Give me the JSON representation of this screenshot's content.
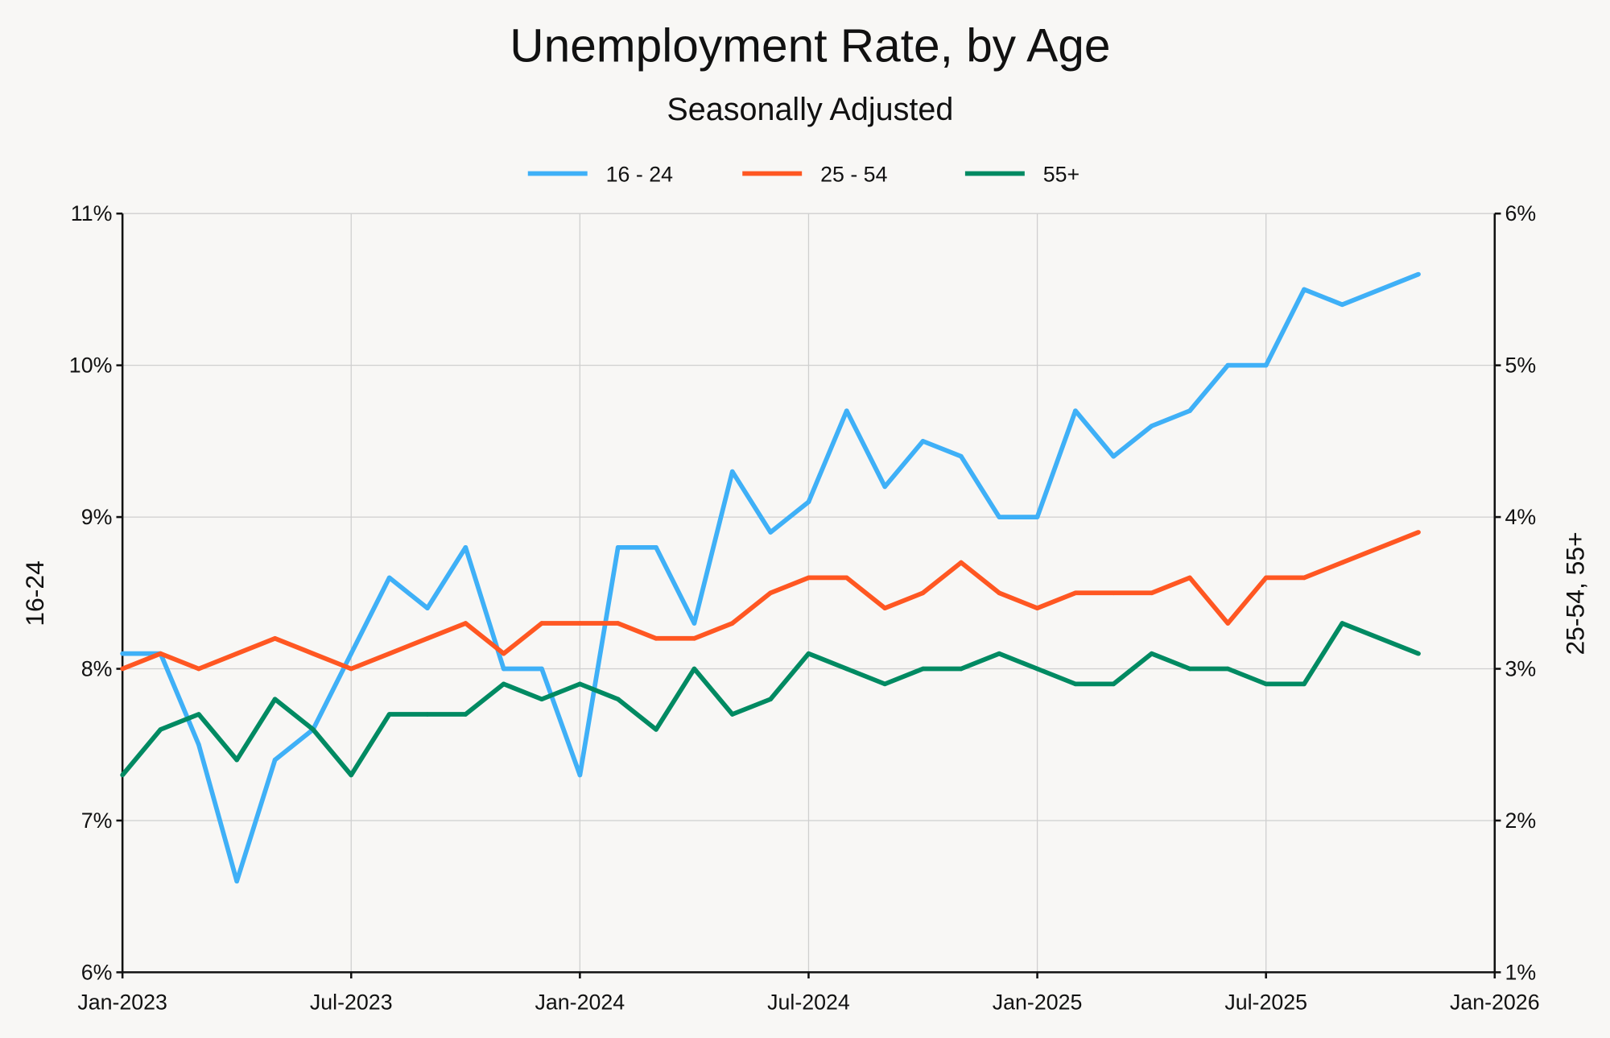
{
  "chart_data": {
    "type": "line",
    "title": "Unemployment Rate, by Age",
    "subtitle": "Seasonally Adjusted",
    "xlabel": "",
    "ylabel_left": "16-24",
    "ylabel_right": "25-54, 55+",
    "ylim_left": [
      6,
      11
    ],
    "ylim_right": [
      1,
      6
    ],
    "yticks_left": [
      "6%",
      "7%",
      "8%",
      "9%",
      "10%",
      "11%"
    ],
    "yticks_right": [
      "1%",
      "2%",
      "3%",
      "4%",
      "5%",
      "6%"
    ],
    "xticks": [
      "Jan-2023",
      "Jul-2023",
      "Jan-2024",
      "Jul-2024",
      "Jan-2025",
      "Jul-2025",
      "Jan-2026"
    ],
    "grid": true,
    "legend_position": "top-center",
    "x": [
      "2023-01",
      "2023-02",
      "2023-03",
      "2023-04",
      "2023-05",
      "2023-06",
      "2023-07",
      "2023-08",
      "2023-09",
      "2023-10",
      "2023-11",
      "2023-12",
      "2024-01",
      "2024-02",
      "2024-03",
      "2024-04",
      "2024-05",
      "2024-06",
      "2024-07",
      "2024-08",
      "2024-09",
      "2024-10",
      "2024-11",
      "2024-12",
      "2025-01",
      "2025-02",
      "2025-03",
      "2025-04",
      "2025-05",
      "2025-06",
      "2025-07",
      "2025-08",
      "2025-09",
      "2025-10",
      "2025-11"
    ],
    "series": [
      {
        "name": "16 - 24",
        "axis": "left",
        "color": "#3fb0f7",
        "values": [
          8.1,
          8.1,
          7.5,
          6.6,
          7.4,
          7.6,
          8.1,
          8.6,
          8.4,
          8.8,
          8.0,
          8.0,
          7.3,
          8.8,
          8.8,
          8.3,
          9.3,
          8.9,
          9.1,
          9.7,
          9.2,
          9.5,
          9.4,
          9.0,
          9.0,
          9.7,
          9.4,
          9.6,
          9.7,
          10.0,
          10.0,
          10.5,
          10.4,
          null,
          10.6
        ]
      },
      {
        "name": "25 - 54",
        "axis": "right",
        "color": "#ff5722",
        "values": [
          3.0,
          3.1,
          3.0,
          3.1,
          3.2,
          3.1,
          3.0,
          3.1,
          3.2,
          3.3,
          3.1,
          3.3,
          3.3,
          3.3,
          3.2,
          3.2,
          3.3,
          3.5,
          3.6,
          3.6,
          3.4,
          3.5,
          3.7,
          3.5,
          3.4,
          3.5,
          3.5,
          3.5,
          3.6,
          3.3,
          3.6,
          3.6,
          3.7,
          null,
          3.9
        ]
      },
      {
        "name": "55+",
        "axis": "right",
        "color": "#008a62",
        "values": [
          2.3,
          2.6,
          2.7,
          2.4,
          2.8,
          2.6,
          2.3,
          2.7,
          2.7,
          2.7,
          2.9,
          2.8,
          2.9,
          2.8,
          2.6,
          3.0,
          2.7,
          2.8,
          3.1,
          3.0,
          2.9,
          3.0,
          3.0,
          3.1,
          3.0,
          2.9,
          2.9,
          3.1,
          3.0,
          3.0,
          2.9,
          2.9,
          3.3,
          null,
          3.1
        ]
      }
    ]
  }
}
